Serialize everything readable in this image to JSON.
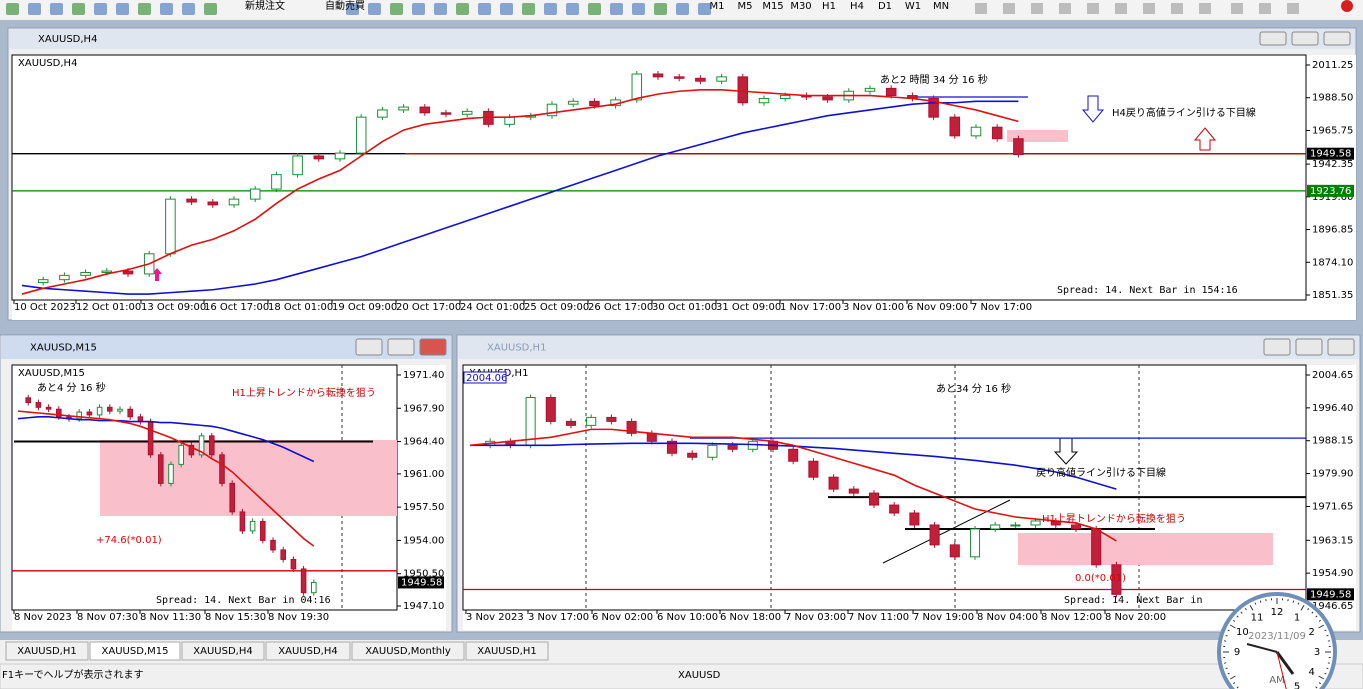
{
  "toolbar": {
    "order_button": "新規注文",
    "auto_button": "自動売買",
    "timeframes": [
      "M1",
      "M5",
      "M15",
      "M30",
      "H1",
      "H4",
      "D1",
      "W1",
      "MN"
    ]
  },
  "windows": [
    {
      "title": "XAUUSD,H4",
      "chart_label": "XAUUSD,H4",
      "ylim": [
        1847.87,
        2018.2
      ],
      "price_ticks": [
        2011.25,
        {
          "value": 1988.5,
          "label": "1988.50"
        },
        1965.75,
        1942.35,
        {
          "value": 1919.6,
          "label": "1919.60"
        },
        1896.85,
        {
          "value": 1874.1,
          "label": "1874.10"
        },
        1851.35
      ],
      "time_labels": [
        "10 Oct 2023",
        "12 Oct 01:00",
        "13 Oct 09:00",
        "16 Oct 17:00",
        "18 Oct 01:00",
        "19 Oct 09:00",
        "20 Oct 17:00",
        "24 Oct 01:00",
        "25 Oct 09:00",
        "26 Oct 17:00",
        "30 Oct 01:00",
        "31 Oct 09:00",
        "1 Nov 17:00",
        "3 Nov 01:00",
        "6 Nov 09:00",
        "7 Nov 17:00"
      ],
      "close": [
        1860,
        1862,
        1865,
        1867,
        1868,
        1866,
        1880,
        1918,
        1916,
        1914,
        1918,
        1925,
        1935,
        1948,
        1946,
        1950,
        1975,
        1980,
        1982,
        1978,
        1977,
        1979,
        1970,
        1975,
        1976,
        1984,
        1986,
        1983,
        1987,
        2005,
        2003,
        2002,
        2000,
        2003,
        1985,
        1988,
        1990,
        1989,
        1987,
        1993,
        1995,
        1990,
        1988,
        1975,
        1962,
        1968,
        1960,
        1949
      ],
      "ma_fast": [
        1852,
        1856,
        1859,
        1862,
        1866,
        1869,
        1873,
        1880,
        1886,
        1890,
        1896,
        1904,
        1915,
        1925,
        1932,
        1938,
        1948,
        1958,
        1966,
        1970,
        1972,
        1974,
        1975,
        1975,
        1976,
        1978,
        1980,
        1982,
        1984,
        1988,
        1991,
        1993,
        1994,
        1994,
        1993,
        1992,
        1991,
        1990,
        1990,
        1990,
        1990,
        1989,
        1988,
        1986,
        1983,
        1980,
        1976,
        1972
      ],
      "ma_slow": [
        1858,
        1856,
        1855,
        1854,
        1853,
        1852,
        1852,
        1853,
        1854,
        1855,
        1857,
        1859,
        1862,
        1866,
        1870,
        1874,
        1878,
        1883,
        1888,
        1893,
        1898,
        1903,
        1908,
        1913,
        1918,
        1923,
        1928,
        1933,
        1938,
        1943,
        1948,
        1952,
        1956,
        1960,
        1964,
        1967,
        1970,
        1973,
        1976,
        1978,
        1980,
        1982,
        1984,
        1985,
        1985,
        1986,
        1986,
        1986
      ],
      "levels": [
        {
          "value": 1949.58,
          "color": "#000000"
        },
        {
          "value": 1949.58,
          "color": "#cc0000"
        },
        {
          "value": 1989,
          "color": "#1010d0"
        },
        {
          "value": 1923.76,
          "color": "#008000"
        }
      ],
      "price_tags": [
        {
          "value": 1949.58,
          "color": "#000000"
        },
        {
          "value": 1923.76,
          "color": "#008000"
        }
      ],
      "annotations": [
        "あと2 時間 34 分 16 秒",
        "H4戻り高値ライン引ける下目線",
        "Spread: 14. Next Bar in 154:16"
      ]
    },
    {
      "title": "XAUUSD,M15",
      "chart_label": "XAUUSD,M15",
      "ylim": [
        1946.68,
        1972.45
      ],
      "price_ticks": [
        {
          "value": 1971.4,
          "label": "1971.40"
        },
        {
          "value": 1967.9,
          "label": "1967.90"
        },
        {
          "value": 1964.4,
          "label": "1964.40"
        },
        {
          "value": 1961,
          "label": "1961.00"
        },
        {
          "value": 1957.5,
          "label": "1957.50"
        },
        {
          "value": 1954,
          "label": "1954.00"
        },
        {
          "value": 1950.5,
          "label": "1950.50"
        },
        {
          "value": 1947.1,
          "label": "1947.10"
        }
      ],
      "time_labels": [
        "8 Nov 2023",
        "8 Nov 07:30",
        "8 Nov 11:30",
        "8 Nov 15:30",
        "8 Nov 19:30"
      ],
      "close": [
        1969,
        1968.5,
        1968,
        1967.8,
        1967,
        1966.8,
        1967.5,
        1967.2,
        1968,
        1967.6,
        1967.8,
        1967,
        1966.5,
        1963,
        1960,
        1962,
        1964,
        1963,
        1965,
        1963,
        1960,
        1957,
        1955,
        1956,
        1954,
        1953,
        1952,
        1951,
        1948.5,
        1949.58
      ],
      "ma_fast": [
        1967.6,
        1967.5,
        1967.4,
        1967.3,
        1967.2,
        1967.1,
        1967,
        1966.9,
        1966.8,
        1966.7,
        1966.5,
        1966.3,
        1966,
        1965.6,
        1965.2,
        1964.8,
        1964.3,
        1963.8,
        1963.3,
        1962.6,
        1962,
        1961.2,
        1960.2,
        1959.2,
        1958.2,
        1957.2,
        1956.2,
        1955.2,
        1954.2,
        1953.4
      ],
      "ma_slow": [
        1966.8,
        1966.9,
        1967,
        1967,
        1966.9,
        1966.8,
        1966.7,
        1966.7,
        1966.6,
        1966.6,
        1966.6,
        1966.5,
        1966.5,
        1966.5,
        1966.4,
        1966.4,
        1966.3,
        1966.2,
        1966.1,
        1966,
        1965.8,
        1965.5,
        1965.2,
        1964.9,
        1964.6,
        1964.2,
        1963.8,
        1963.3,
        1962.8,
        1962.3
      ],
      "levels": [
        {
          "value": 1964.4,
          "color": "#000000"
        },
        {
          "value": 1950.8,
          "color": "#cc0000"
        }
      ],
      "price_tags": [
        {
          "value": 1949.58,
          "color": "#000000"
        }
      ],
      "annotations": [
        "あと4 分 16 秒",
        "H1上昇トレンドから転換を狙う",
        "+74.6(*0.01)",
        "Spread: 14. Next Bar in 04:16"
      ]
    },
    {
      "title": "XAUUSD,H1",
      "chart_label": "XAUUSD,H1",
      "top_label": "2004.06",
      "ylim": [
        1945.65,
        2007.16
      ],
      "price_ticks": [
        2004.65,
        {
          "value": 1996.4,
          "label": "1996.40"
        },
        1988.15,
        {
          "value": 1979.9,
          "label": "1979.90"
        },
        1971.65,
        1963.15,
        {
          "value": 1954.9,
          "label": "1954.90"
        },
        1946.65
      ],
      "time_labels": [
        "3 Nov 2023",
        "3 Nov 17:00",
        "6 Nov 02:00",
        "6 Nov 10:00",
        "6 Nov 18:00",
        "7 Nov 03:00",
        "7 Nov 11:00",
        "7 Nov 19:00",
        "8 Nov 04:00",
        "8 Nov 12:00",
        "8 Nov 20:00"
      ],
      "close": [
        1987,
        1988,
        1987,
        1999,
        1993,
        1992,
        1994,
        1993,
        1990,
        1988,
        1985,
        1984,
        1987,
        1986,
        1988,
        1986,
        1983,
        1979,
        1976,
        1975,
        1972,
        1970,
        1967,
        1962,
        1959,
        1966,
        1967,
        1967,
        1968,
        1967,
        1966,
        1957,
        1949.58
      ],
      "ma_fast": [
        1987,
        1987.5,
        1988,
        1988.5,
        1989,
        1990,
        1991,
        1991,
        1990.5,
        1990,
        1989.5,
        1989,
        1989,
        1989,
        1988.5,
        1988,
        1987,
        1985.5,
        1984,
        1982.5,
        1981,
        1979.5,
        1977,
        1975,
        1973,
        1971,
        1970,
        1969,
        1968.5,
        1968,
        1967.5,
        1966,
        1963
      ],
      "ma_slow": [
        1987,
        1987,
        1987,
        1987,
        1987,
        1987.2,
        1987.3,
        1987.4,
        1987.5,
        1987.5,
        1987.5,
        1987.5,
        1987.4,
        1987.3,
        1987.2,
        1987,
        1986.8,
        1986.5,
        1986.2,
        1985.8,
        1985.4,
        1985,
        1984.6,
        1984.2,
        1983.7,
        1983.2,
        1982.6,
        1982,
        1981.2,
        1980.3,
        1979,
        1977.5,
        1976
      ],
      "levels": [
        {
          "value": 1988.8,
          "color": "#1010d0"
        },
        {
          "value": 1974,
          "color": "#000000"
        },
        {
          "value": 1966,
          "color": "#000000"
        },
        {
          "value": 1950.8,
          "color": "#cc0000"
        }
      ],
      "price_tags": [
        {
          "value": 1949.58,
          "color": "#000000"
        }
      ],
      "annotations": [
        "あと34 分 16 秒",
        "戻り高値ライン引ける下目線",
        "H1上昇トレンドから転換を狙う",
        "0.0(*0.01)",
        "Spread: 14. Next Bar in"
      ]
    }
  ],
  "tabs": [
    "XAUUSD,H1",
    "XAUUSD,M15",
    "XAUUSD,H4",
    "XAUUSD,H4",
    "XAUUSD,Monthly",
    "XAUUSD,H1"
  ],
  "status": {
    "help": "F1キーでヘルプが表示されます",
    "symbol": "XAUUSD"
  },
  "clock": {
    "date": "2023/11/09",
    "meridiem": "AM",
    "numerals": [
      9,
      10,
      11,
      12,
      1,
      2,
      3,
      4,
      5
    ]
  }
}
